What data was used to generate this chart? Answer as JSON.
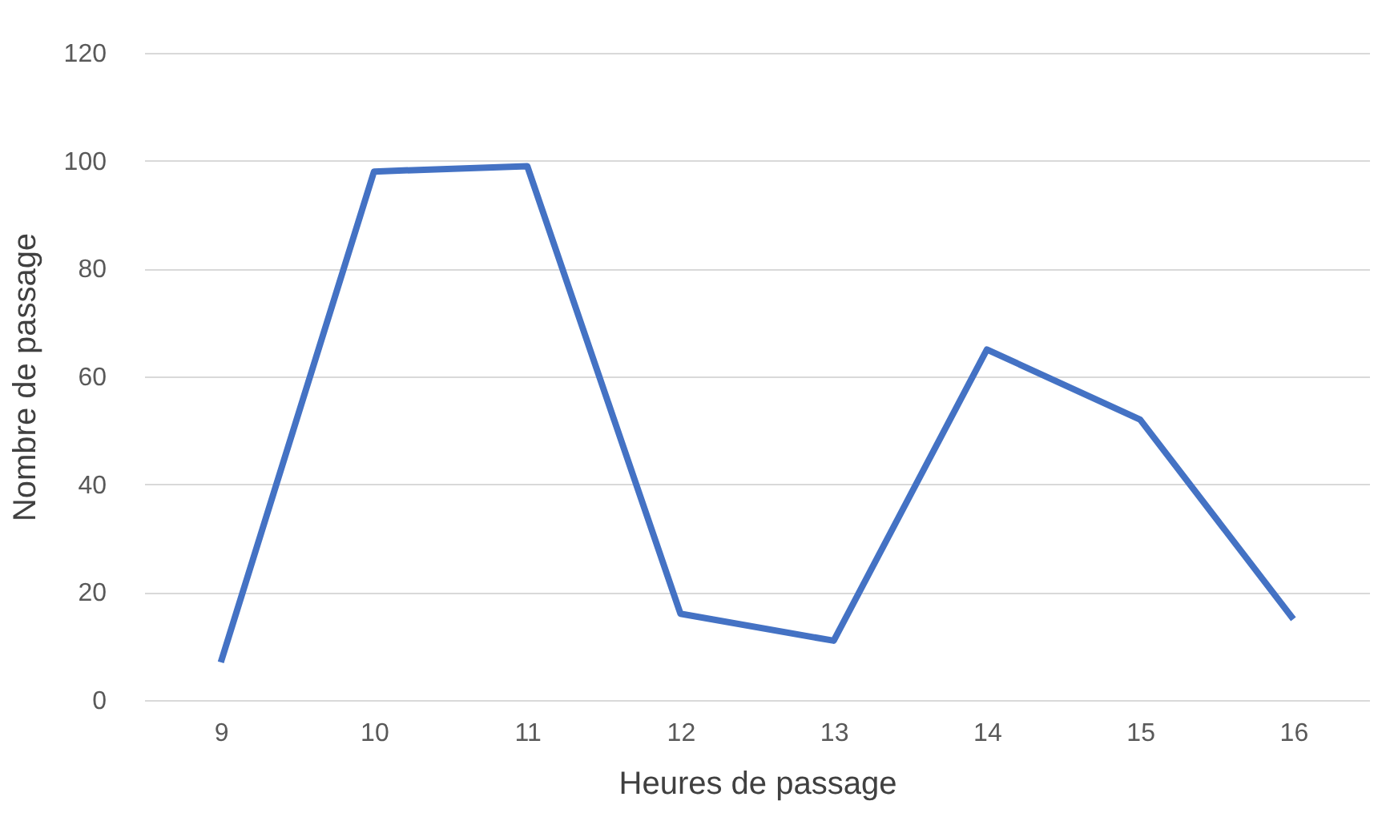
{
  "chart_data": {
    "type": "line",
    "xlabel": "Heures de passage",
    "ylabel": "Nombre de passage",
    "categories": [
      "9",
      "10",
      "11",
      "12",
      "13",
      "14",
      "15",
      "16"
    ],
    "series": [
      {
        "color": "#4472c4",
        "values": [
          7,
          98,
          99,
          16,
          11,
          65,
          52,
          15
        ]
      }
    ],
    "ylim": [
      0,
      120
    ],
    "yticks": [
      0,
      20,
      40,
      60,
      80,
      100,
      120
    ],
    "grid": "y",
    "legend": false,
    "marker": "none",
    "line_style": "solid"
  }
}
